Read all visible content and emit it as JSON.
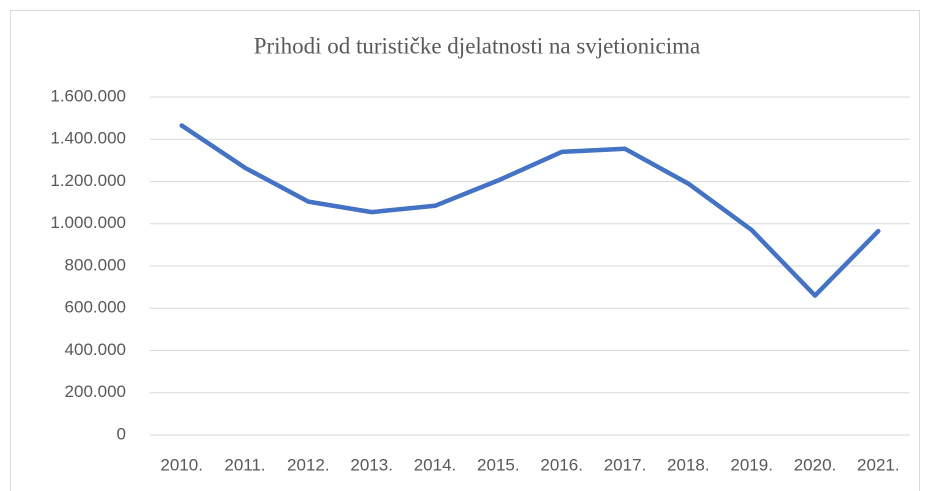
{
  "chart_data": {
    "type": "line",
    "title": "Prihodi od turističke djelatnosti na svjetionicima",
    "categories": [
      "2010.",
      "2011.",
      "2012.",
      "2013.",
      "2014.",
      "2015.",
      "2016.",
      "2017.",
      "2018.",
      "2019.",
      "2020.",
      "2021."
    ],
    "values": [
      1465000,
      1265000,
      1105000,
      1055000,
      1085000,
      1205000,
      1340000,
      1355000,
      1190000,
      970000,
      660000,
      965000
    ],
    "color": "#4472c4",
    "ylim": [
      0,
      1600000
    ],
    "yticks": [
      0,
      {
        "value": 200000,
        "label": "200.000"
      },
      {
        "value": 400000,
        "label": "400.000"
      },
      {
        "value": 600000,
        "label": "600.000"
      },
      {
        "value": 800000,
        "label": "800.000"
      },
      {
        "value": 1000000,
        "label": "1.000.000"
      },
      {
        "value": 1200000,
        "label": "1.200.000"
      },
      {
        "value": 1400000,
        "label": "1.400.000"
      },
      {
        "value": 1600000,
        "label": "1.600.000"
      }
    ],
    "grid": true
  }
}
